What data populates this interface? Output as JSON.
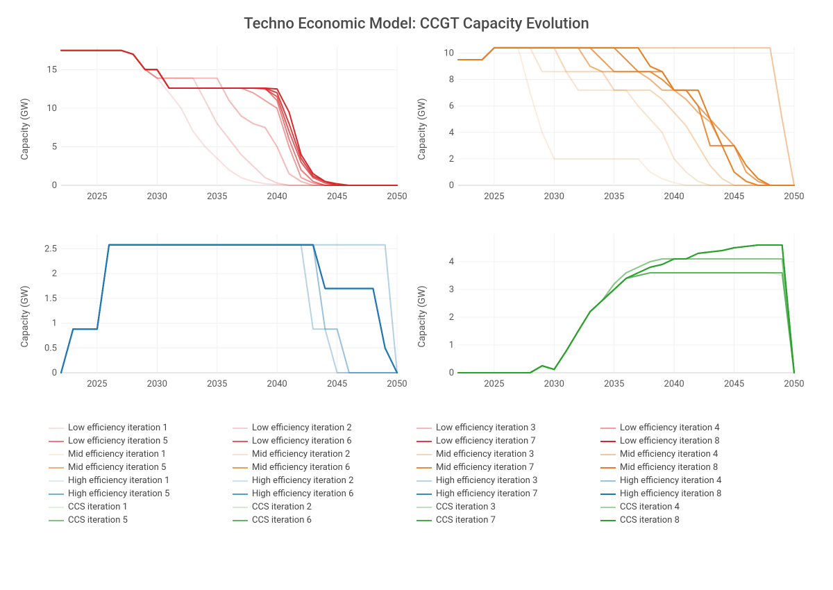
{
  "title": "Techno Economic Model: CCGT Capacity Evolution",
  "ylabel": "Capacity (GW)",
  "title_fontsize": 22,
  "label_fontsize": 14,
  "tick_fontsize": 13,
  "font_family": "system-ui",
  "background_color": "#ffffff",
  "grid_color": "#f0f0f0",
  "axis_color": "#cfcfcf",
  "line_width": 2,
  "x_years": [
    2022,
    2023,
    2024,
    2025,
    2026,
    2027,
    2028,
    2029,
    2030,
    2031,
    2032,
    2033,
    2034,
    2035,
    2036,
    2037,
    2038,
    2039,
    2040,
    2041,
    2042,
    2043,
    2044,
    2045,
    2046,
    2047,
    2048,
    2049,
    2050
  ],
  "groups": [
    {
      "name": "Low efficiency",
      "base": "#d62728",
      "panel": 0
    },
    {
      "name": "Mid efficiency",
      "base": "#e67e22",
      "panel": 1
    },
    {
      "name": "High efficiency",
      "base": "#1f77b4",
      "panel": 2
    },
    {
      "name": "CCS",
      "base": "#2ca02c",
      "panel": 3
    }
  ],
  "iteration_alphas": [
    0.15,
    0.22,
    0.32,
    0.45,
    0.6,
    0.75,
    0.88,
    1.0
  ],
  "panels": [
    {
      "xlim": [
        2022,
        2050
      ],
      "ylim": [
        0,
        18
      ],
      "yticks": [
        0,
        5,
        10,
        15
      ],
      "xticks": [
        2025,
        2030,
        2035,
        2040,
        2045,
        2050
      ],
      "series": [
        [
          17.5,
          17.5,
          17.5,
          17.5,
          17.5,
          17.5,
          17.0,
          15.0,
          13.9,
          12.0,
          10.0,
          7.0,
          5.0,
          3.5,
          2.0,
          1.0,
          0.5,
          0.2,
          0.1,
          0,
          0,
          0,
          0,
          0,
          0,
          0,
          0,
          0,
          0
        ],
        [
          17.5,
          17.5,
          17.5,
          17.5,
          17.5,
          17.5,
          17.0,
          15.0,
          13.9,
          13.9,
          13.9,
          13.9,
          11.0,
          8.0,
          6.0,
          4.0,
          2.5,
          1.0,
          0.3,
          0,
          0,
          0,
          0,
          0,
          0,
          0,
          0,
          0,
          0
        ],
        [
          17.5,
          17.5,
          17.5,
          17.5,
          17.5,
          17.5,
          17.0,
          15.0,
          13.9,
          13.9,
          13.9,
          13.9,
          13.9,
          13.9,
          11.0,
          9.0,
          8.0,
          7.5,
          5.0,
          1.5,
          0.5,
          0,
          0,
          0,
          0,
          0,
          0,
          0,
          0
        ],
        [
          17.5,
          17.5,
          17.5,
          17.5,
          17.5,
          17.5,
          17.0,
          15.0,
          15.0,
          12.6,
          12.6,
          12.6,
          12.6,
          12.6,
          12.6,
          12.6,
          12.0,
          11.0,
          10.0,
          5.0,
          1.0,
          0.3,
          0,
          0,
          0,
          0,
          0,
          0,
          0
        ],
        [
          17.5,
          17.5,
          17.5,
          17.5,
          17.5,
          17.5,
          17.0,
          15.0,
          15.0,
          12.6,
          12.6,
          12.6,
          12.6,
          12.6,
          12.6,
          12.6,
          12.6,
          12.6,
          11.0,
          6.0,
          2.0,
          0.5,
          0,
          0,
          0,
          0,
          0,
          0,
          0
        ],
        [
          17.5,
          17.5,
          17.5,
          17.5,
          17.5,
          17.5,
          17.0,
          15.0,
          15.0,
          12.6,
          12.6,
          12.6,
          12.6,
          12.6,
          12.6,
          12.6,
          12.6,
          12.5,
          11.5,
          7.0,
          3.0,
          1.0,
          0.3,
          0,
          0,
          0,
          0,
          0,
          0
        ],
        [
          17.5,
          17.5,
          17.5,
          17.5,
          17.5,
          17.5,
          17.0,
          15.0,
          15.0,
          12.6,
          12.6,
          12.6,
          12.6,
          12.6,
          12.6,
          12.6,
          12.6,
          12.6,
          12.0,
          8.0,
          3.5,
          1.2,
          0.5,
          0,
          0,
          0,
          0,
          0,
          0
        ],
        [
          17.5,
          17.5,
          17.5,
          17.5,
          17.5,
          17.5,
          17.0,
          15.0,
          15.0,
          12.6,
          12.6,
          12.6,
          12.6,
          12.6,
          12.6,
          12.6,
          12.6,
          12.6,
          12.5,
          9.5,
          4.0,
          1.5,
          0.5,
          0.2,
          0,
          0,
          0,
          0,
          0
        ]
      ]
    },
    {
      "xlim": [
        2022,
        2050
      ],
      "ylim": [
        0,
        10.5
      ],
      "yticks": [
        0,
        2,
        4,
        6,
        8,
        10
      ],
      "xticks": [
        2025,
        2030,
        2035,
        2040,
        2045,
        2050
      ],
      "series": [
        [
          9.5,
          9.5,
          9.5,
          10.4,
          10.4,
          10.4,
          7.0,
          4.0,
          2.0,
          2.0,
          2.0,
          2.0,
          2.0,
          2.0,
          2.0,
          2.0,
          1.0,
          0.5,
          0.2,
          0,
          0,
          0,
          0,
          0,
          0,
          0,
          0,
          0,
          0
        ],
        [
          9.5,
          9.5,
          9.5,
          10.4,
          10.4,
          10.4,
          10.4,
          8.6,
          8.6,
          8.6,
          7.2,
          7.2,
          7.2,
          7.2,
          7.2,
          6.0,
          5.0,
          4.0,
          2.0,
          1.0,
          0.3,
          0,
          0,
          0,
          0,
          0,
          0,
          0,
          0
        ],
        [
          9.5,
          9.5,
          9.5,
          10.4,
          10.4,
          10.4,
          10.4,
          10.4,
          10.4,
          8.6,
          8.6,
          8.6,
          8.6,
          7.2,
          7.2,
          7.2,
          7.2,
          6.5,
          5.5,
          4.5,
          3.0,
          1.5,
          0.5,
          0,
          0,
          0,
          0,
          0,
          0
        ],
        [
          9.5,
          9.5,
          9.5,
          10.4,
          10.4,
          10.4,
          10.4,
          10.4,
          10.4,
          10.4,
          10.4,
          10.4,
          10.4,
          10.4,
          10.4,
          10.4,
          10.4,
          10.4,
          10.4,
          10.4,
          10.4,
          10.4,
          10.4,
          10.4,
          10.4,
          10.4,
          10.4,
          5.0,
          0
        ],
        [
          9.5,
          9.5,
          9.5,
          10.4,
          10.4,
          10.4,
          10.4,
          10.4,
          10.4,
          10.4,
          10.4,
          9.0,
          8.6,
          8.6,
          8.6,
          8.6,
          8.0,
          7.2,
          7.2,
          6.5,
          5.5,
          4.8,
          3.0,
          1.0,
          0.3,
          0,
          0,
          0,
          0
        ],
        [
          9.5,
          9.5,
          9.5,
          10.4,
          10.4,
          10.4,
          10.4,
          10.4,
          10.4,
          10.4,
          10.4,
          10.4,
          9.5,
          8.6,
          8.6,
          8.6,
          8.6,
          8.6,
          7.2,
          7.2,
          6.0,
          5.0,
          4.0,
          3.0,
          1.0,
          0.3,
          0,
          0,
          0
        ],
        [
          9.5,
          9.5,
          9.5,
          10.4,
          10.4,
          10.4,
          10.4,
          10.4,
          10.4,
          10.4,
          10.4,
          10.4,
          10.4,
          10.4,
          9.5,
          8.6,
          8.6,
          8.0,
          7.2,
          7.2,
          6.0,
          3.0,
          3.0,
          1.0,
          0.3,
          0,
          0,
          0,
          0
        ],
        [
          9.5,
          9.5,
          9.5,
          10.4,
          10.4,
          10.4,
          10.4,
          10.4,
          10.4,
          10.4,
          10.4,
          10.4,
          10.4,
          10.4,
          10.4,
          10.4,
          9.0,
          8.6,
          7.2,
          7.2,
          7.2,
          5.0,
          3.0,
          3.0,
          1.5,
          0.5,
          0,
          0,
          0
        ]
      ]
    },
    {
      "xlim": [
        2022,
        2050
      ],
      "ylim": [
        0,
        2.8
      ],
      "yticks": [
        0,
        0.5,
        1,
        1.5,
        2,
        2.5
      ],
      "xticks": [
        2025,
        2030,
        2035,
        2040,
        2045,
        2050
      ],
      "series": [
        [
          0,
          0.88,
          0.88,
          0.88,
          2.58,
          2.58,
          2.58,
          2.58,
          2.58,
          2.58,
          2.58,
          2.58,
          2.58,
          2.58,
          2.58,
          2.58,
          2.58,
          2.58,
          2.58,
          2.58,
          2.58,
          2.58,
          2.58,
          2.58,
          2.58,
          2.58,
          2.58,
          2.58,
          0
        ],
        [
          0,
          0.88,
          0.88,
          0.88,
          2.58,
          2.58,
          2.58,
          2.58,
          2.58,
          2.58,
          2.58,
          2.58,
          2.58,
          2.58,
          2.58,
          2.58,
          2.58,
          2.58,
          2.58,
          2.58,
          2.58,
          2.58,
          2.58,
          2.58,
          2.58,
          2.58,
          2.58,
          2.58,
          0
        ],
        [
          0,
          0.88,
          0.88,
          0.88,
          2.58,
          2.58,
          2.58,
          2.58,
          2.58,
          2.58,
          2.58,
          2.58,
          2.58,
          2.58,
          2.58,
          2.58,
          2.58,
          2.58,
          2.58,
          2.58,
          2.58,
          0.88,
          0.88,
          0.0,
          0,
          0,
          0,
          0,
          0
        ],
        [
          0,
          0.88,
          0.88,
          0.88,
          2.58,
          2.58,
          2.58,
          2.58,
          2.58,
          2.58,
          2.58,
          2.58,
          2.58,
          2.58,
          2.58,
          2.58,
          2.58,
          2.58,
          2.58,
          2.58,
          2.58,
          2.58,
          0.88,
          0.88,
          0.0,
          0,
          0,
          0,
          0
        ],
        [
          0,
          0.88,
          0.88,
          0.88,
          2.58,
          2.58,
          2.58,
          2.58,
          2.58,
          2.58,
          2.58,
          2.58,
          2.58,
          2.58,
          2.58,
          2.58,
          2.58,
          2.58,
          2.58,
          2.58,
          2.58,
          2.58,
          1.7,
          1.7,
          1.7,
          1.7,
          1.7,
          0.5,
          0
        ],
        [
          0,
          0.88,
          0.88,
          0.88,
          2.58,
          2.58,
          2.58,
          2.58,
          2.58,
          2.58,
          2.58,
          2.58,
          2.58,
          2.58,
          2.58,
          2.58,
          2.58,
          2.58,
          2.58,
          2.58,
          2.58,
          2.58,
          1.7,
          1.7,
          1.7,
          1.7,
          1.7,
          0.5,
          0
        ],
        [
          0,
          0.88,
          0.88,
          0.88,
          2.58,
          2.58,
          2.58,
          2.58,
          2.58,
          2.58,
          2.58,
          2.58,
          2.58,
          2.58,
          2.58,
          2.58,
          2.58,
          2.58,
          2.58,
          2.58,
          2.58,
          2.58,
          1.7,
          1.7,
          1.7,
          1.7,
          1.7,
          0.5,
          0
        ],
        [
          0,
          0.88,
          0.88,
          0.88,
          2.58,
          2.58,
          2.58,
          2.58,
          2.58,
          2.58,
          2.58,
          2.58,
          2.58,
          2.58,
          2.58,
          2.58,
          2.58,
          2.58,
          2.58,
          2.58,
          2.58,
          2.58,
          1.7,
          1.7,
          1.7,
          1.7,
          1.7,
          0.5,
          0
        ]
      ]
    },
    {
      "xlim": [
        2022,
        2050
      ],
      "ylim": [
        0,
        5
      ],
      "yticks": [
        0,
        1,
        2,
        3,
        4
      ],
      "xticks": [
        2025,
        2030,
        2035,
        2040,
        2045,
        2050
      ],
      "series": [
        [
          0,
          0,
          0,
          0,
          0,
          0,
          0,
          0.25,
          0.12,
          0.78,
          1.5,
          2.2,
          2.6,
          3.0,
          3.4,
          3.5,
          3.6,
          3.6,
          3.6,
          3.6,
          3.6,
          3.6,
          3.6,
          3.6,
          3.6,
          3.6,
          3.6,
          3.5,
          0
        ],
        [
          0,
          0,
          0,
          0,
          0,
          0,
          0,
          0.25,
          0.12,
          0.78,
          1.5,
          2.2,
          2.6,
          3.2,
          3.6,
          3.8,
          4.0,
          4.1,
          4.1,
          4.1,
          4.1,
          4.1,
          4.1,
          4.1,
          4.1,
          4.1,
          4.1,
          4.1,
          0
        ],
        [
          0,
          0,
          0,
          0,
          0,
          0,
          0,
          0.25,
          0.12,
          0.78,
          1.5,
          2.2,
          2.6,
          3.0,
          3.4,
          3.5,
          3.6,
          3.6,
          3.6,
          3.6,
          3.6,
          3.6,
          3.6,
          3.6,
          3.6,
          3.6,
          3.6,
          3.6,
          0
        ],
        [
          0,
          0,
          0,
          0,
          0,
          0,
          0,
          0.25,
          0.12,
          0.78,
          1.5,
          2.2,
          2.6,
          3.2,
          3.6,
          3.8,
          4.0,
          4.1,
          4.1,
          4.1,
          4.1,
          4.1,
          4.1,
          4.1,
          4.1,
          4.1,
          4.1,
          4.1,
          0
        ],
        [
          0,
          0,
          0,
          0,
          0,
          0,
          0,
          0.25,
          0.12,
          0.78,
          1.5,
          2.2,
          2.6,
          3.0,
          3.4,
          3.5,
          3.6,
          3.6,
          3.6,
          3.6,
          3.6,
          3.6,
          3.6,
          3.6,
          3.6,
          3.6,
          3.6,
          3.6,
          0
        ],
        [
          0,
          0,
          0,
          0,
          0,
          0,
          0,
          0.25,
          0.12,
          0.78,
          1.5,
          2.2,
          2.6,
          3.0,
          3.4,
          3.6,
          3.8,
          3.9,
          4.1,
          4.1,
          4.3,
          4.35,
          4.4,
          4.5,
          4.55,
          4.6,
          4.6,
          4.6,
          0
        ],
        [
          0,
          0,
          0,
          0,
          0,
          0,
          0,
          0.25,
          0.12,
          0.78,
          1.5,
          2.2,
          2.6,
          3.0,
          3.4,
          3.6,
          3.8,
          3.9,
          4.1,
          4.1,
          4.3,
          4.35,
          4.4,
          4.5,
          4.55,
          4.6,
          4.6,
          4.6,
          0
        ],
        [
          0,
          0,
          0,
          0,
          0,
          0,
          0,
          0.25,
          0.12,
          0.78,
          1.5,
          2.2,
          2.6,
          3.0,
          3.4,
          3.6,
          3.8,
          3.9,
          4.1,
          4.1,
          4.3,
          4.35,
          4.4,
          4.5,
          4.55,
          4.6,
          4.6,
          4.6,
          0
        ]
      ]
    }
  ],
  "legend_labels": [
    "Low efficiency iteration 1",
    "Low efficiency iteration 2",
    "Low efficiency iteration 3",
    "Low efficiency iteration 4",
    "Low efficiency iteration 5",
    "Low efficiency iteration 6",
    "Low efficiency iteration 7",
    "Low efficiency iteration 8",
    "Mid efficiency iteration 1",
    "Mid efficiency iteration 2",
    "Mid efficiency iteration 3",
    "Mid efficiency iteration 4",
    "Mid efficiency iteration 5",
    "Mid efficiency iteration 6",
    "Mid efficiency iteration 7",
    "Mid efficiency iteration 8",
    "High efficiency iteration 1",
    "High efficiency iteration 2",
    "High efficiency iteration 3",
    "High efficiency iteration 4",
    "High efficiency iteration 5",
    "High efficiency iteration 6",
    "High efficiency iteration 7",
    "High efficiency iteration 8",
    "CCS iteration 1",
    "CCS iteration 2",
    "CCS iteration 3",
    "CCS iteration 4",
    "CCS iteration 5",
    "CCS iteration 6",
    "CCS iteration 7",
    "CCS iteration 8"
  ]
}
